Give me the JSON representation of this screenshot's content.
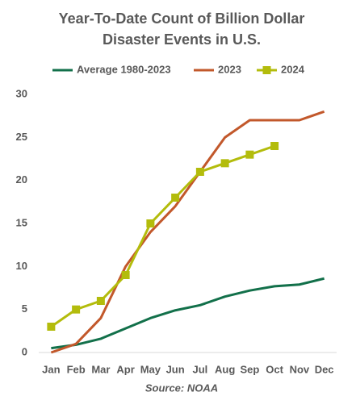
{
  "chart_data": {
    "type": "line",
    "title": [
      "Year-To-Date  Count of Billion Dollar",
      "Disaster Events in U.S."
    ],
    "annotation": "Source: NOAA",
    "categories": [
      "Jan",
      "Feb",
      "Mar",
      "Apr",
      "May",
      "Jun",
      "Jul",
      "Aug",
      "Sep",
      "Oct",
      "Nov",
      "Dec"
    ],
    "series": [
      {
        "name": "Average 1980-2023",
        "color": "#12704a",
        "marker": "none",
        "values": [
          0.5,
          0.9,
          1.6,
          2.8,
          4.0,
          4.9,
          5.5,
          6.5,
          7.2,
          7.7,
          7.9,
          8.6
        ]
      },
      {
        "name": "2023",
        "color": "#c2582b",
        "marker": "none",
        "values": [
          0,
          1,
          4,
          10,
          14,
          17,
          21,
          25,
          27,
          27,
          27,
          28
        ]
      },
      {
        "name": "2024",
        "color": "#b3bc0c",
        "marker": "square",
        "values": [
          3,
          5,
          6,
          9,
          15,
          18,
          21,
          22,
          23,
          24,
          null,
          null
        ]
      }
    ],
    "ylim": [
      0,
      30
    ],
    "yticks": [
      0,
      5,
      10,
      15,
      20,
      25,
      30
    ],
    "grid": false,
    "legend": "top"
  }
}
